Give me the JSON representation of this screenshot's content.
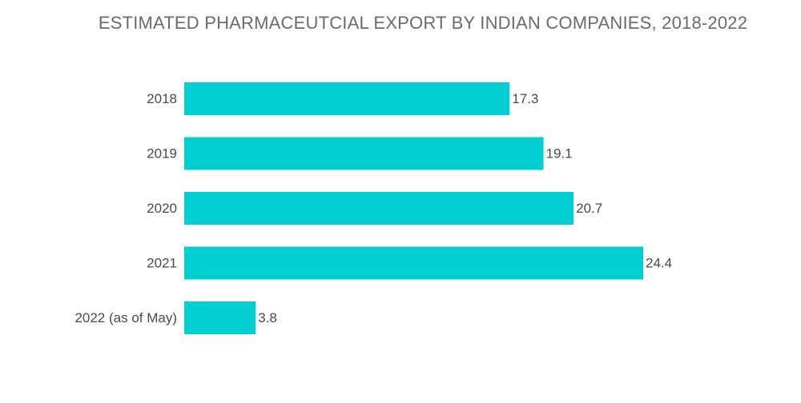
{
  "chart_data": {
    "type": "bar",
    "orientation": "horizontal",
    "title": "ESTIMATED PHARMACEUTCIAL EXPORT BY INDIAN COMPANIES, 2018-2022",
    "categories": [
      "2018",
      "2019",
      "2020",
      "2021",
      "2022 (as of May)"
    ],
    "values": [
      17.3,
      19.1,
      20.7,
      24.4,
      3.8
    ],
    "value_labels": [
      "17.3",
      "19.1",
      "20.7",
      "24.4",
      "3.8"
    ],
    "xlabel": "",
    "ylabel": "",
    "xlim": [
      0,
      24.4
    ],
    "grid": false,
    "legend": "none",
    "bar_color": "#00CED1"
  }
}
